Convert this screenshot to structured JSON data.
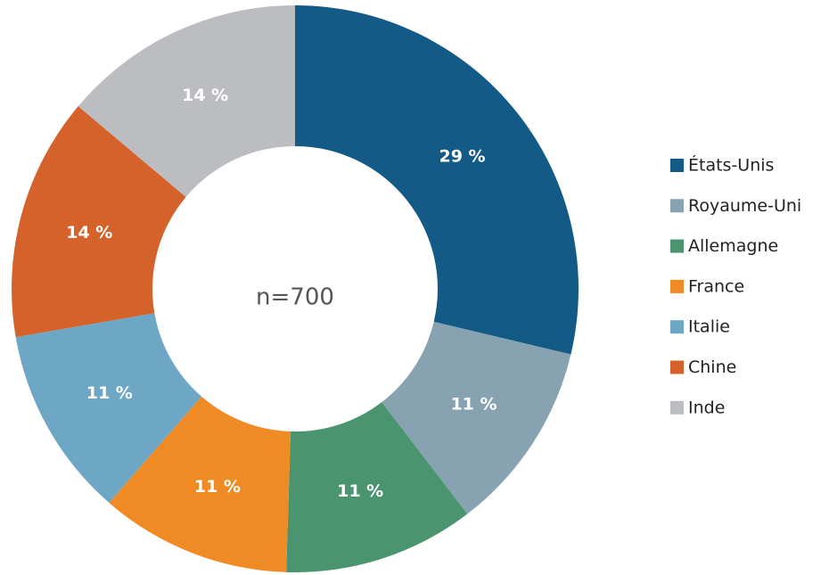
{
  "chart_data": {
    "type": "donut",
    "categories": [
      "États-Unis",
      "Royaume-Uni",
      "Allemagne",
      "France",
      "Italie",
      "Chine",
      "Inde"
    ],
    "values": [
      29,
      11,
      11,
      11,
      11,
      14,
      14
    ],
    "value_labels": [
      "29 %",
      "11 %",
      "11 %",
      "11 %",
      "11 %",
      "14 %",
      "14 %"
    ],
    "colors": [
      "#135a87",
      "#87a2b1",
      "#4b9470",
      "#f08a24",
      "#6ea6c6",
      "#d4622a",
      "#bcbdc1"
    ],
    "annotation": "n=700",
    "legend": "right"
  }
}
